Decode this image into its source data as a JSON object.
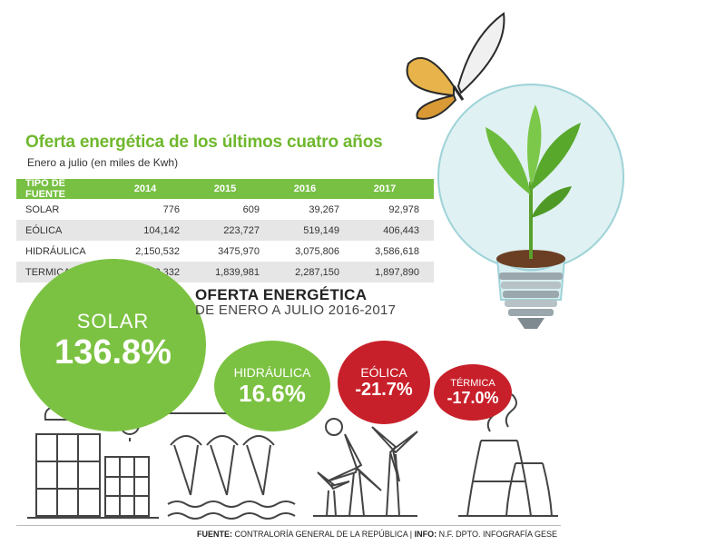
{
  "title": "Oferta energética de los últimos cuatro años",
  "subtitle": "Enero a julio (en miles de Kwh)",
  "chart_data": [
    {
      "type": "table",
      "columns": [
        "TIPO DE FUENTE",
        "2014",
        "2015",
        "2016",
        "2017"
      ],
      "rows": [
        [
          "SOLAR",
          "776",
          "609",
          "39,267",
          "92,978"
        ],
        [
          "EÓLICA",
          "104,142",
          "223,727",
          "519,149",
          "406,443"
        ],
        [
          "HIDRÁULICA",
          "2,150,532",
          "3475,970",
          "3,075,806",
          "3,586,618"
        ],
        [
          "TERMICA",
          "2,558,332",
          "1,839,981",
          "2,287,150",
          "1,897,890"
        ]
      ]
    },
    {
      "type": "bubble",
      "title": "OFERTA ENERGÉTICA",
      "subtitle": "DE ENERO A JULIO 2016-2017",
      "items": [
        {
          "label": "SOLAR",
          "value": "136.8%",
          "color": "#7cc242"
        },
        {
          "label": "HIDRÁULICA",
          "value": "16.6%",
          "color": "#7cc242"
        },
        {
          "label": "EÓLICA",
          "value": "-21.7%",
          "color": "#c8202a"
        },
        {
          "label": "TÉRMICA",
          "value": "-17.0%",
          "color": "#c8202a"
        }
      ]
    }
  ],
  "footer": {
    "fuente_label": "FUENTE:",
    "fuente_text": "CONTRALORÍA GENERAL DE LA REPÚBLICA",
    "info_label": "INFO:",
    "info_text": "N.F. DPTO. INFOGRAFÍA GESE"
  },
  "icons": [
    "butterfly-icon",
    "lightbulb-icon",
    "sprout-icon",
    "solar-panel-icon",
    "sun-icon",
    "cloud-icon",
    "dam-icon",
    "wind-turbine-icon",
    "cooling-tower-icon"
  ],
  "colors": {
    "green": "#7cc242",
    "header_green": "#77c043",
    "title_green": "#6fb82e",
    "red": "#c8202a"
  }
}
